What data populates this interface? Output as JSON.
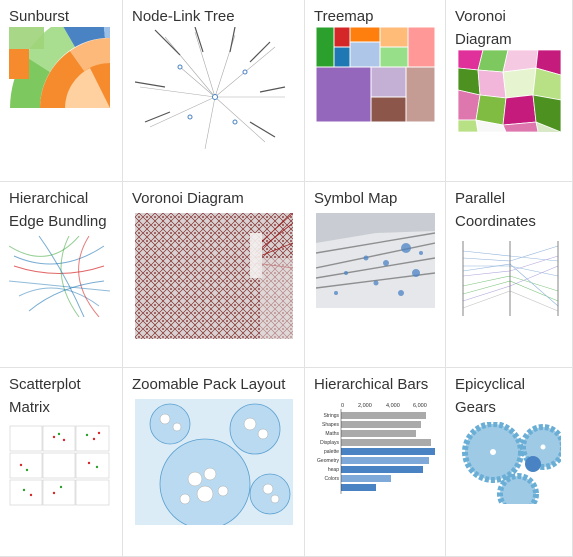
{
  "gallery": {
    "items": [
      {
        "title_lines": [
          "Sunburst"
        ]
      },
      {
        "title_lines": [
          "Node-Link Tree"
        ]
      },
      {
        "title_lines": [
          "Treemap"
        ]
      },
      {
        "title_lines": [
          "Voronoi",
          "Diagram"
        ]
      },
      {
        "title_lines": [
          "Hierarchical",
          "Edge Bundling"
        ]
      },
      {
        "title_lines": [
          "Voronoi Diagram"
        ]
      },
      {
        "title_lines": [
          "Symbol Map"
        ]
      },
      {
        "title_lines": [
          "Parallel",
          "Coordinates"
        ]
      },
      {
        "title_lines": [
          "Scatterplot",
          "Matrix"
        ]
      },
      {
        "title_lines": [
          "Zoomable Pack Layout"
        ]
      },
      {
        "title_lines": [
          "Hierarchical Bars"
        ]
      },
      {
        "title_lines": [
          "Epicyclical",
          "Gears"
        ]
      }
    ]
  },
  "hbars": {
    "axis_ticks": [
      "0",
      "2,000",
      "4,000",
      "6,000"
    ],
    "labels": [
      "Strings",
      "Shapes",
      "Maths",
      "Displays",
      "palette",
      "Geometry",
      "heap",
      "Colors"
    ]
  },
  "colors": {
    "border": "#e2e2e2",
    "text": "#333333",
    "accent_blue": "#4a83c4",
    "accent_orange": "#f58b2c",
    "accent_green": "#7ec95f"
  }
}
